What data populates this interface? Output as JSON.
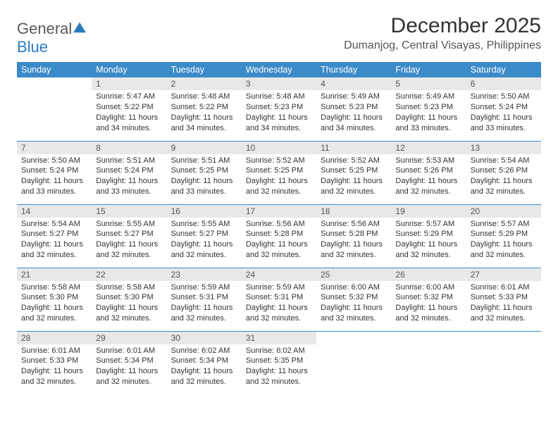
{
  "logo": {
    "text1": "General",
    "text2": "Blue"
  },
  "title": "December 2025",
  "location": "Dumanjog, Central Visayas, Philippines",
  "colors": {
    "header_bg": "#3b8bc9",
    "header_text": "#ffffff",
    "daynum_bg": "#e8e8e8",
    "row_border": "#3b8bc9",
    "body_text": "#333333",
    "logo_gray": "#5a5a5a",
    "logo_blue": "#2b7bbf"
  },
  "weekdays": [
    "Sunday",
    "Monday",
    "Tuesday",
    "Wednesday",
    "Thursday",
    "Friday",
    "Saturday"
  ],
  "weeks": [
    [
      null,
      {
        "n": "1",
        "sr": "5:47 AM",
        "ss": "5:22 PM",
        "dl": "11 hours and 34 minutes."
      },
      {
        "n": "2",
        "sr": "5:48 AM",
        "ss": "5:22 PM",
        "dl": "11 hours and 34 minutes."
      },
      {
        "n": "3",
        "sr": "5:48 AM",
        "ss": "5:23 PM",
        "dl": "11 hours and 34 minutes."
      },
      {
        "n": "4",
        "sr": "5:49 AM",
        "ss": "5:23 PM",
        "dl": "11 hours and 34 minutes."
      },
      {
        "n": "5",
        "sr": "5:49 AM",
        "ss": "5:23 PM",
        "dl": "11 hours and 33 minutes."
      },
      {
        "n": "6",
        "sr": "5:50 AM",
        "ss": "5:24 PM",
        "dl": "11 hours and 33 minutes."
      }
    ],
    [
      {
        "n": "7",
        "sr": "5:50 AM",
        "ss": "5:24 PM",
        "dl": "11 hours and 33 minutes."
      },
      {
        "n": "8",
        "sr": "5:51 AM",
        "ss": "5:24 PM",
        "dl": "11 hours and 33 minutes."
      },
      {
        "n": "9",
        "sr": "5:51 AM",
        "ss": "5:25 PM",
        "dl": "11 hours and 33 minutes."
      },
      {
        "n": "10",
        "sr": "5:52 AM",
        "ss": "5:25 PM",
        "dl": "11 hours and 32 minutes."
      },
      {
        "n": "11",
        "sr": "5:52 AM",
        "ss": "5:25 PM",
        "dl": "11 hours and 32 minutes."
      },
      {
        "n": "12",
        "sr": "5:53 AM",
        "ss": "5:26 PM",
        "dl": "11 hours and 32 minutes."
      },
      {
        "n": "13",
        "sr": "5:54 AM",
        "ss": "5:26 PM",
        "dl": "11 hours and 32 minutes."
      }
    ],
    [
      {
        "n": "14",
        "sr": "5:54 AM",
        "ss": "5:27 PM",
        "dl": "11 hours and 32 minutes."
      },
      {
        "n": "15",
        "sr": "5:55 AM",
        "ss": "5:27 PM",
        "dl": "11 hours and 32 minutes."
      },
      {
        "n": "16",
        "sr": "5:55 AM",
        "ss": "5:27 PM",
        "dl": "11 hours and 32 minutes."
      },
      {
        "n": "17",
        "sr": "5:56 AM",
        "ss": "5:28 PM",
        "dl": "11 hours and 32 minutes."
      },
      {
        "n": "18",
        "sr": "5:56 AM",
        "ss": "5:28 PM",
        "dl": "11 hours and 32 minutes."
      },
      {
        "n": "19",
        "sr": "5:57 AM",
        "ss": "5:29 PM",
        "dl": "11 hours and 32 minutes."
      },
      {
        "n": "20",
        "sr": "5:57 AM",
        "ss": "5:29 PM",
        "dl": "11 hours and 32 minutes."
      }
    ],
    [
      {
        "n": "21",
        "sr": "5:58 AM",
        "ss": "5:30 PM",
        "dl": "11 hours and 32 minutes."
      },
      {
        "n": "22",
        "sr": "5:58 AM",
        "ss": "5:30 PM",
        "dl": "11 hours and 32 minutes."
      },
      {
        "n": "23",
        "sr": "5:59 AM",
        "ss": "5:31 PM",
        "dl": "11 hours and 32 minutes."
      },
      {
        "n": "24",
        "sr": "5:59 AM",
        "ss": "5:31 PM",
        "dl": "11 hours and 32 minutes."
      },
      {
        "n": "25",
        "sr": "6:00 AM",
        "ss": "5:32 PM",
        "dl": "11 hours and 32 minutes."
      },
      {
        "n": "26",
        "sr": "6:00 AM",
        "ss": "5:32 PM",
        "dl": "11 hours and 32 minutes."
      },
      {
        "n": "27",
        "sr": "6:01 AM",
        "ss": "5:33 PM",
        "dl": "11 hours and 32 minutes."
      }
    ],
    [
      {
        "n": "28",
        "sr": "6:01 AM",
        "ss": "5:33 PM",
        "dl": "11 hours and 32 minutes."
      },
      {
        "n": "29",
        "sr": "6:01 AM",
        "ss": "5:34 PM",
        "dl": "11 hours and 32 minutes."
      },
      {
        "n": "30",
        "sr": "6:02 AM",
        "ss": "5:34 PM",
        "dl": "11 hours and 32 minutes."
      },
      {
        "n": "31",
        "sr": "6:02 AM",
        "ss": "5:35 PM",
        "dl": "11 hours and 32 minutes."
      },
      null,
      null,
      null
    ]
  ],
  "labels": {
    "sunrise": "Sunrise:",
    "sunset": "Sunset:",
    "daylight": "Daylight:"
  }
}
